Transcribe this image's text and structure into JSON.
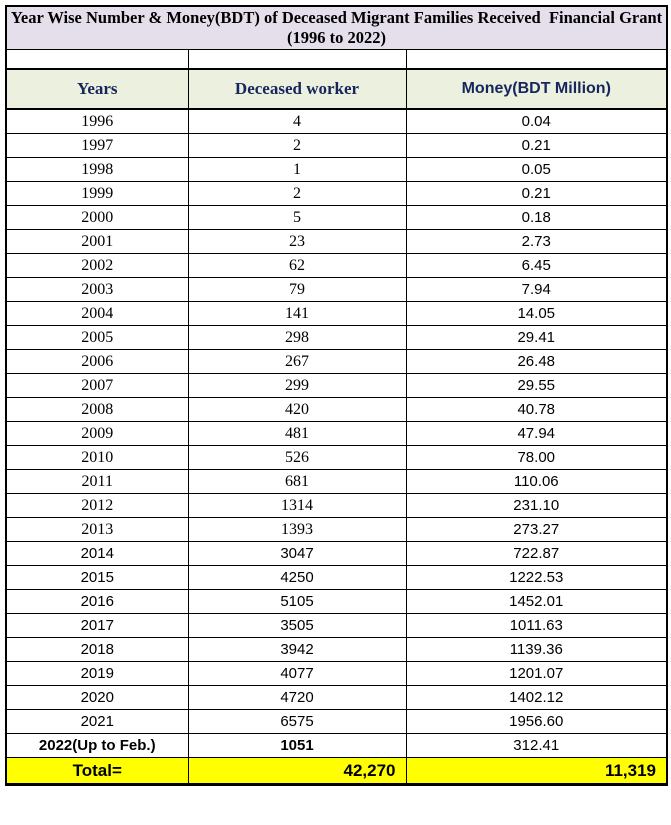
{
  "title": {
    "text": "Year Wise Number & Money(BDT) of Deceased Migrant Families Received  Financial Grant (1996 to 2022)"
  },
  "colors": {
    "title_background": "#E5DFEC",
    "header_background": "#EBF1DE",
    "total_background": "#FFFF00",
    "heading_text": "#1F2A60",
    "border": "#000000",
    "page_background": "#FFFFFF"
  },
  "table": {
    "headers": [
      "Years",
      "Deceased worker",
      "Money(BDT Million)"
    ],
    "rows": [
      {
        "year": "1996",
        "workers": "4",
        "money": "0.04"
      },
      {
        "year": "1997",
        "workers": "2",
        "money": "0.21"
      },
      {
        "year": "1998",
        "workers": "1",
        "money": "0.05"
      },
      {
        "year": "1999",
        "workers": "2",
        "money": "0.21"
      },
      {
        "year": "2000",
        "workers": "5",
        "money": "0.18"
      },
      {
        "year": "2001",
        "workers": "23",
        "money": "2.73"
      },
      {
        "year": "2002",
        "workers": "62",
        "money": "6.45"
      },
      {
        "year": "2003",
        "workers": "79",
        "money": "7.94"
      },
      {
        "year": "2004",
        "workers": "141",
        "money": "14.05"
      },
      {
        "year": "2005",
        "workers": "298",
        "money": "29.41"
      },
      {
        "year": "2006",
        "workers": "267",
        "money": "26.48"
      },
      {
        "year": "2007",
        "workers": "299",
        "money": "29.55"
      },
      {
        "year": "2008",
        "workers": "420",
        "money": "40.78"
      },
      {
        "year": "2009",
        "workers": "481",
        "money": "47.94"
      },
      {
        "year": "2010",
        "workers": "526",
        "money": "78.00"
      },
      {
        "year": "2011",
        "workers": "681",
        "money": "110.06"
      },
      {
        "year": "2012",
        "workers": "1314",
        "money": "231.10"
      },
      {
        "year": "2013",
        "workers": "1393",
        "money": "273.27"
      },
      {
        "year": "2014",
        "workers": "3047",
        "money": "722.87"
      },
      {
        "year": "2015",
        "workers": "4250",
        "money": "1222.53"
      },
      {
        "year": "2016",
        "workers": "5105",
        "money": "1452.01"
      },
      {
        "year": "2017",
        "workers": "3505",
        "money": "1011.63"
      },
      {
        "year": "2018",
        "workers": "3942",
        "money": "1139.36"
      },
      {
        "year": "2019",
        "workers": "4077",
        "money": "1201.07"
      },
      {
        "year": "2020",
        "workers": "4720",
        "money": "1402.12"
      },
      {
        "year": "2021",
        "workers": "6575",
        "money": "1956.60"
      },
      {
        "year": "2022(Up to Feb.)",
        "workers": "1051",
        "money": "312.41"
      }
    ],
    "total": {
      "label": "Total=",
      "workers": "42,270",
      "money": "11,319"
    }
  }
}
